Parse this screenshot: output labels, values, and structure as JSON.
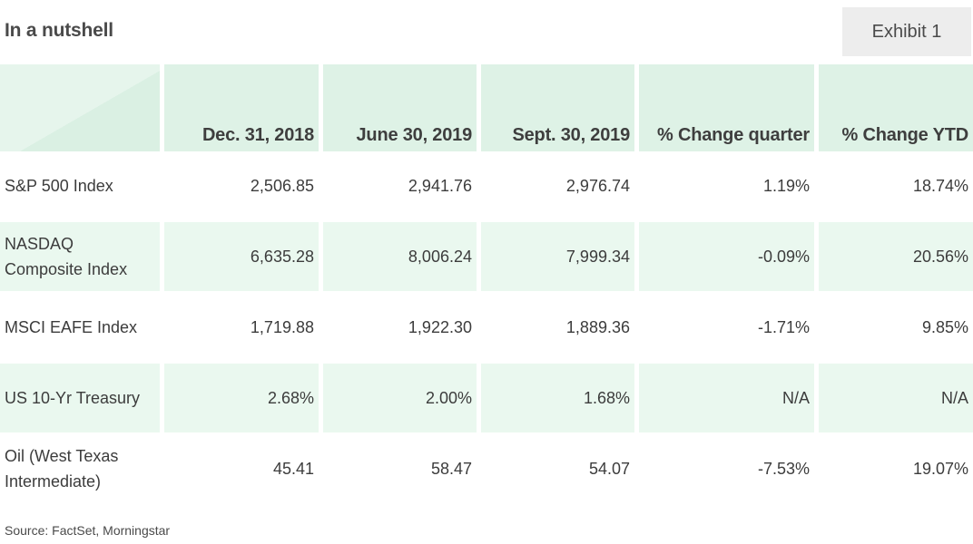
{
  "title": "In a nutshell",
  "exhibit": "Exhibit 1",
  "table": {
    "columns": [
      "Dec. 31, 2018",
      "June 30, 2019",
      "Sept. 30, 2019",
      "% Change quarter",
      "% Change YTD"
    ],
    "rows": [
      {
        "label": "S&P 500 Index",
        "values": [
          "2,506.85",
          "2,941.76",
          "2,976.74",
          "1.19%",
          "18.74%"
        ]
      },
      {
        "label": "NASDAQ Composite Index",
        "values": [
          "6,635.28",
          "8,006.24",
          "7,999.34",
          "-0.09%",
          "20.56%"
        ]
      },
      {
        "label": "MSCI EAFE Index",
        "values": [
          "1,719.88",
          "1,922.30",
          "1,889.36",
          "-1.71%",
          "9.85%"
        ]
      },
      {
        "label": "US 10-Yr Treasury",
        "values": [
          "2.68%",
          "2.00%",
          "1.68%",
          "N/A",
          "N/A"
        ]
      },
      {
        "label": "Oil (West Texas Intermediate)",
        "values": [
          "45.41",
          "58.47",
          "54.07",
          "-7.53%",
          "19.07%"
        ]
      }
    ]
  },
  "colors": {
    "header_bg": "#def2e6",
    "shaded_row_bg": "#eaf8ef",
    "exhibit_bg": "#ededed"
  },
  "source": "Source: FactSet, Morningstar"
}
